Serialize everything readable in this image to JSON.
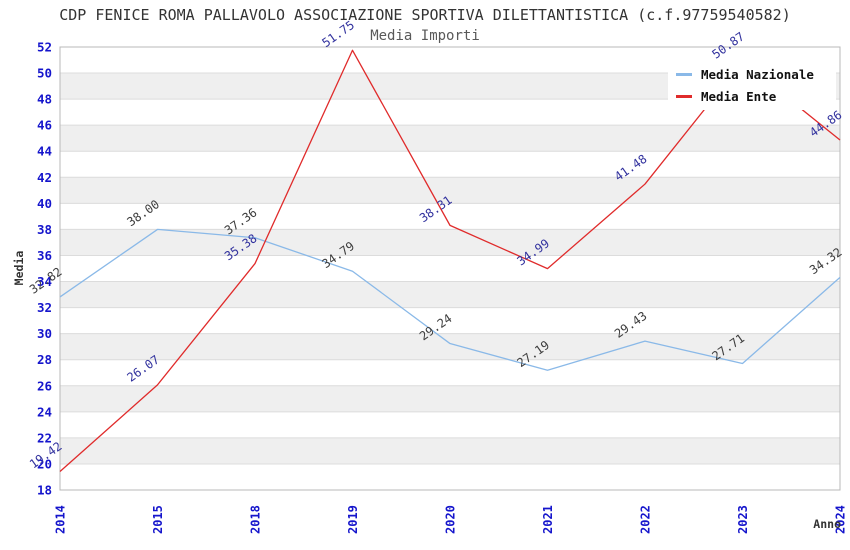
{
  "page": {
    "background": "#ffffff"
  },
  "chart_data": {
    "type": "line",
    "title": "CDP FENICE ROMA PALLAVOLO ASSOCIAZIONE SPORTIVA DILETTANTISTICA (c.f.97759540582)",
    "subtitle": "Media Importi",
    "xlabel": "Anno",
    "ylabel": "Media",
    "categories": [
      "2014",
      "2015",
      "2018",
      "2019",
      "2020",
      "2021",
      "2022",
      "2023",
      "2024"
    ],
    "series": [
      {
        "name": "Media Nazionale",
        "color": "#8ab9e8",
        "label_color": "#3d3d3d",
        "values": [
          32.82,
          38.0,
          37.36,
          34.79,
          29.24,
          27.19,
          29.43,
          27.71,
          34.32
        ]
      },
      {
        "name": "Media Ente",
        "color": "#e02b2b",
        "label_color": "#32329e",
        "values": [
          19.42,
          26.07,
          35.38,
          51.75,
          38.31,
          34.99,
          41.48,
          50.87,
          44.86
        ]
      }
    ],
    "ylim": [
      18,
      52
    ],
    "ytick_step": 2,
    "value_label_decimals": 2,
    "legend_position": "top-right",
    "gridlines": "horizontal",
    "colors": {
      "axis_tick": "#1515cc",
      "band": "#efefef",
      "grid": "#dcdcdc",
      "plot_border": "#b8b8b8",
      "axis_title": "#333333"
    }
  }
}
